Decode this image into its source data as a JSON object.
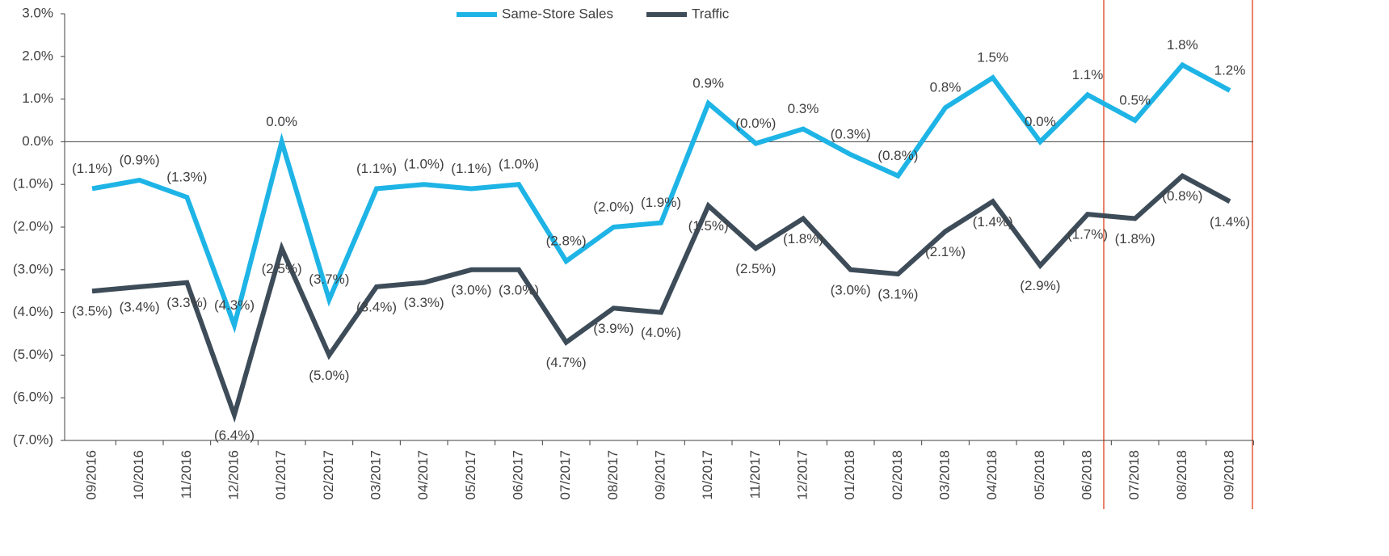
{
  "chart_data": {
    "type": "line",
    "categories": [
      "09/2016",
      "10/2016",
      "11/2016",
      "12/2016",
      "01/2017",
      "02/2017",
      "03/2017",
      "04/2017",
      "05/2017",
      "06/2017",
      "07/2017",
      "08/2017",
      "09/2017",
      "10/2017",
      "11/2017",
      "12/2017",
      "01/2018",
      "02/2018",
      "03/2018",
      "04/2018",
      "05/2018",
      "06/2018",
      "07/2018",
      "08/2018",
      "09/2018"
    ],
    "series": [
      {
        "name": "Same-Store Sales",
        "color": "#1eb4e6",
        "values": [
          -1.1,
          -0.9,
          -1.3,
          -4.3,
          0.0,
          -3.7,
          -1.1,
          -1.0,
          -1.1,
          -1.0,
          -2.8,
          -2.0,
          -1.9,
          0.9,
          -0.04,
          0.3,
          -0.3,
          -0.8,
          0.8,
          1.5,
          0.0,
          1.1,
          0.5,
          1.8,
          1.2
        ],
        "value_labels": [
          "(1.1%)",
          "(0.9%)",
          "(1.3%)",
          "(4.3%)",
          "0.0%",
          "(3.7%)",
          "(1.1%)",
          "(1.0%)",
          "(1.1%)",
          "(1.0%)",
          "(2.8%)",
          "(2.0%)",
          "(1.9%)",
          "0.9%",
          "(0.0%)",
          "0.3%",
          "(0.3%)",
          "(0.8%)",
          "0.8%",
          "1.5%",
          "0.0%",
          "1.1%",
          "0.5%",
          "1.8%",
          "1.2%"
        ]
      },
      {
        "name": "Traffic",
        "color": "#3d4c58",
        "values": [
          -3.5,
          -3.4,
          -3.3,
          -6.4,
          -2.5,
          -5.0,
          -3.4,
          -3.3,
          -3.0,
          -3.0,
          -4.7,
          -3.9,
          -4.0,
          -1.5,
          -2.5,
          -1.8,
          -3.0,
          -3.1,
          -2.1,
          -1.4,
          -2.9,
          -1.7,
          -1.8,
          -0.8,
          -1.4
        ],
        "value_labels": [
          "(3.5%)",
          "(3.4%)",
          "(3.3%)",
          "(6.4%)",
          "(2.5%)",
          "(5.0%)",
          "(3.4%)",
          "(3.3%)",
          "(3.0%)",
          "(3.0%)",
          "(4.7%)",
          "(3.9%)",
          "(4.0%)",
          "(1.5%)",
          "(2.5%)",
          "(1.8%)",
          "(3.0%)",
          "(3.1%)",
          "(2.1%)",
          "(1.4%)",
          "(2.9%)",
          "(1.7%)",
          "(1.8%)",
          "(0.8%)",
          "(1.4%)"
        ]
      }
    ],
    "ylim": [
      -7,
      3
    ],
    "yticks": [
      {
        "value": 3,
        "label": "3.0%"
      },
      {
        "value": 2,
        "label": "2.0%"
      },
      {
        "value": 1,
        "label": "1.0%"
      },
      {
        "value": 0,
        "label": "0.0%"
      },
      {
        "value": -1,
        "label": "(1.0%)"
      },
      {
        "value": -2,
        "label": "(2.0%)"
      },
      {
        "value": -3,
        "label": "(3.0%)"
      },
      {
        "value": -4,
        "label": "(4.0%)"
      },
      {
        "value": -5,
        "label": "(5.0%)"
      },
      {
        "value": -6,
        "label": "(6.0%)"
      },
      {
        "value": -7,
        "label": "(7.0%)"
      }
    ],
    "legend": "top"
  }
}
